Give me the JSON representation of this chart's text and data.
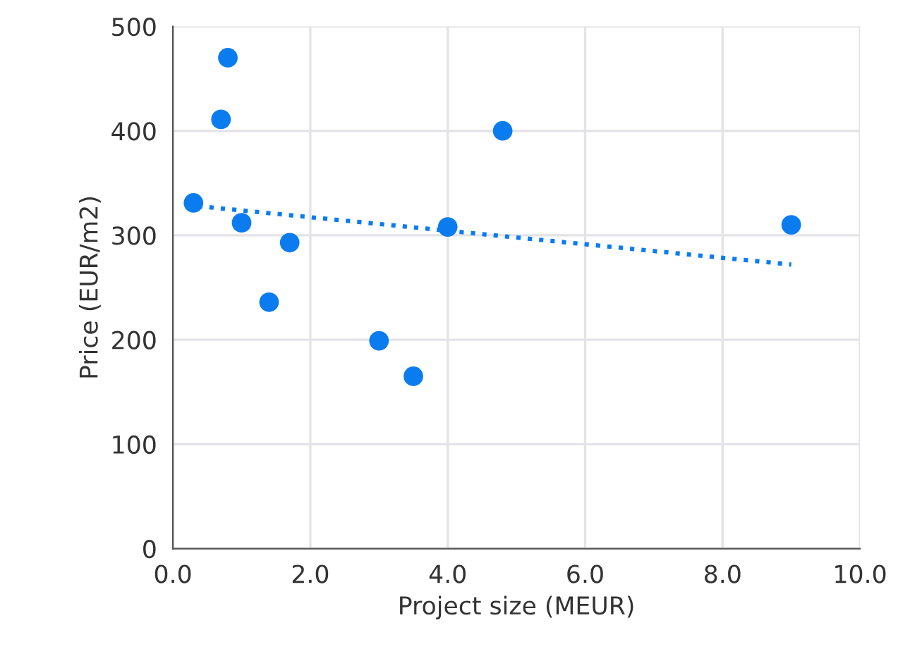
{
  "chart_data": {
    "type": "scatter",
    "xlabel": "Project size (MEUR)",
    "ylabel": "Price (EUR/m2)",
    "xlim": [
      0,
      10
    ],
    "ylim": [
      0,
      500
    ],
    "xticks": [
      {
        "value": 0,
        "label": "0.0"
      },
      {
        "value": 2,
        "label": "2.0"
      },
      {
        "value": 4,
        "label": "4.0"
      },
      {
        "value": 6,
        "label": "6.0"
      },
      {
        "value": 8,
        "label": "8.0"
      },
      {
        "value": 10,
        "label": "10.0"
      }
    ],
    "yticks": [
      0,
      100,
      200,
      300,
      400,
      500
    ],
    "grid": true,
    "marker": "circle",
    "series": [
      {
        "color": "#0a7cf0",
        "x": [
          0.3,
          0.8,
          0.7,
          1.0,
          1.7,
          1.4,
          3.0,
          3.5,
          4.0,
          4.8,
          9.0
        ],
        "values": [
          331,
          470,
          411,
          312,
          293,
          236,
          199,
          165,
          308,
          400,
          310
        ]
      },
      {
        "type": "line",
        "color": "#0a7cf0",
        "line_style": "dotted",
        "marker": "none",
        "x": [
          0.2,
          9.0
        ],
        "values": [
          329,
          272
        ]
      }
    ]
  }
}
